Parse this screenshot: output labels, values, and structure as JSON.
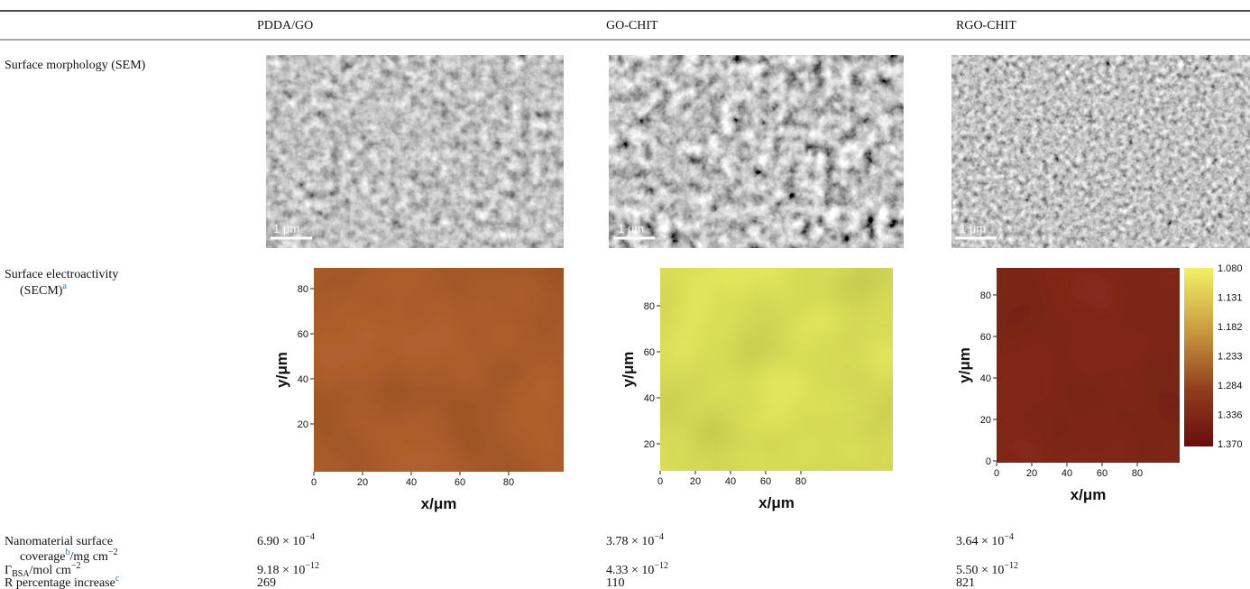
{
  "table": {
    "columns": [
      "PDDA/GO",
      "GO-CHIT",
      "RGO-CHIT"
    ],
    "rows": [
      {
        "label": "Surface morphology (SEM)",
        "scale_bars": [
          "1 μm",
          "1 μm",
          "1 μm"
        ]
      },
      {
        "label": "Surface electroactivity",
        "label_cont": "(SECM)",
        "footnote": "a",
        "plots": [
          {
            "xlabel": "x/μm",
            "ylabel": "y/μm",
            "xticks": [
              "0",
              "20",
              "40",
              "60",
              "80"
            ],
            "yticks": [
              "20",
              "40",
              "60",
              "80"
            ]
          },
          {
            "xlabel": "x/μm",
            "ylabel": "y/μm",
            "xticks": [
              "0",
              "20",
              "40",
              "60",
              "80"
            ],
            "yticks": [
              "20",
              "40",
              "60",
              "80"
            ]
          },
          {
            "xlabel": "x/μm",
            "ylabel": "y/μm",
            "xticks": [
              "0",
              "20",
              "40",
              "60",
              "80"
            ],
            "yticks": [
              "0",
              "20",
              "40",
              "60",
              "80"
            ]
          }
        ],
        "colorbar": [
          "1.080",
          "1.131",
          "1.182",
          "1.233",
          "1.284",
          "1.336",
          "1.370"
        ]
      },
      {
        "label": "Nanomaterial surface",
        "label_cont": "coverage",
        "footnote": "b",
        "unit": "/mg cm",
        "unit_exp": "−2",
        "cells": [
          {
            "mantissa": "6.90 × 10",
            "exp": "−4"
          },
          {
            "mantissa": "3.78 × 10",
            "exp": "−4"
          },
          {
            "mantissa": "3.64 × 10",
            "exp": "−4"
          }
        ]
      },
      {
        "label": "Γ",
        "label_sub": "BSA",
        "unit": "/mol cm",
        "unit_exp": "−2",
        "cells": [
          {
            "mantissa": "9.18 × 10",
            "exp": "−12"
          },
          {
            "mantissa": "4.33 × 10",
            "exp": "−12"
          },
          {
            "mantissa": "5.50 × 10",
            "exp": "−12"
          }
        ]
      },
      {
        "label": "R percentage increase",
        "footnote": "c",
        "cells": [
          "269",
          "110",
          "821"
        ]
      }
    ]
  }
}
